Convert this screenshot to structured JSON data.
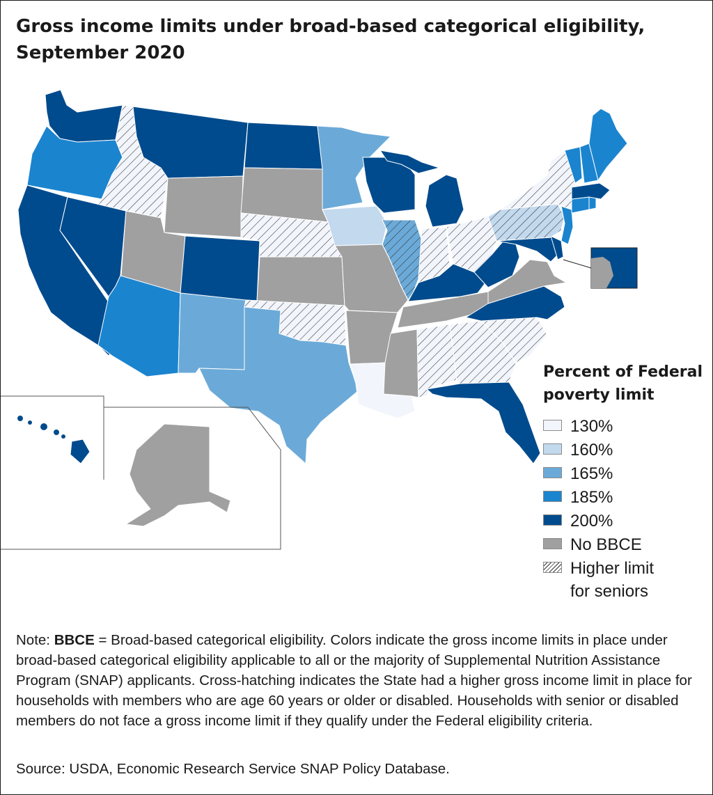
{
  "title": "Gross income limits under broad-based categorical eligibility, September 2020",
  "legend": {
    "heading": "Percent of Federal poverty limit",
    "items": [
      {
        "label": "130%",
        "key": "c130",
        "color": "#f2f5fb"
      },
      {
        "label": "160%",
        "key": "c160",
        "color": "#c3d9ee"
      },
      {
        "label": "165%",
        "key": "c165",
        "color": "#6baad8"
      },
      {
        "label": "185%",
        "key": "c185",
        "color": "#1b84cf"
      },
      {
        "label": "200%",
        "key": "c200",
        "color": "#004b8d"
      },
      {
        "label": "No BBCE",
        "key": "none",
        "color": "#a0a0a0"
      },
      {
        "label": "Higher limit for seniors",
        "key": "hatch",
        "color": "#ffffff"
      }
    ]
  },
  "note": {
    "prefix": "Note: ",
    "term": "BBCE",
    "text": " = Broad-based categorical eligibility. Colors indicate the gross income limits in place under broad-based categorical eligibility applicable to all or the majority of Supplemental Nutrition Assistance Program (SNAP) applicants. Cross-hatching indicates the State had a higher gross income limit in place for households with members who are age 60 years or older or disabled. Households with senior or disabled members do not face a gross income limit if they qualify under the Federal eligibility criteria."
  },
  "source": "Source: USDA, Economic Research Service SNAP Policy Database.",
  "states": [
    {
      "name": "Washington",
      "cat": "c200",
      "hatch": false
    },
    {
      "name": "Oregon",
      "cat": "c185",
      "hatch": false
    },
    {
      "name": "California",
      "cat": "c200",
      "hatch": false
    },
    {
      "name": "Idaho",
      "cat": "c130",
      "hatch": true
    },
    {
      "name": "Nevada",
      "cat": "c200",
      "hatch": false
    },
    {
      "name": "Montana",
      "cat": "c200",
      "hatch": false
    },
    {
      "name": "Wyoming",
      "cat": "none",
      "hatch": false
    },
    {
      "name": "Utah",
      "cat": "none",
      "hatch": false
    },
    {
      "name": "Arizona",
      "cat": "c185",
      "hatch": false
    },
    {
      "name": "Colorado",
      "cat": "c200",
      "hatch": false
    },
    {
      "name": "New Mexico",
      "cat": "c165",
      "hatch": false
    },
    {
      "name": "North Dakota",
      "cat": "c200",
      "hatch": false
    },
    {
      "name": "South Dakota",
      "cat": "none",
      "hatch": false
    },
    {
      "name": "Nebraska",
      "cat": "c130",
      "hatch": true
    },
    {
      "name": "Kansas",
      "cat": "none",
      "hatch": false
    },
    {
      "name": "Oklahoma",
      "cat": "c130",
      "hatch": true
    },
    {
      "name": "Texas",
      "cat": "c165",
      "hatch": false
    },
    {
      "name": "Minnesota",
      "cat": "c165",
      "hatch": false
    },
    {
      "name": "Iowa",
      "cat": "c160",
      "hatch": false
    },
    {
      "name": "Missouri",
      "cat": "none",
      "hatch": false
    },
    {
      "name": "Arkansas",
      "cat": "none",
      "hatch": false
    },
    {
      "name": "Louisiana",
      "cat": "c130",
      "hatch": false
    },
    {
      "name": "Wisconsin",
      "cat": "c200",
      "hatch": false
    },
    {
      "name": "Illinois",
      "cat": "c165",
      "hatch": true
    },
    {
      "name": "Michigan",
      "cat": "c200",
      "hatch": false
    },
    {
      "name": "Indiana",
      "cat": "c130",
      "hatch": true
    },
    {
      "name": "Ohio",
      "cat": "c130",
      "hatch": true
    },
    {
      "name": "Kentucky",
      "cat": "c200",
      "hatch": false
    },
    {
      "name": "Tennessee",
      "cat": "none",
      "hatch": false
    },
    {
      "name": "Mississippi",
      "cat": "none",
      "hatch": false
    },
    {
      "name": "Alabama",
      "cat": "c130",
      "hatch": true
    },
    {
      "name": "Georgia",
      "cat": "c130",
      "hatch": true
    },
    {
      "name": "Florida",
      "cat": "c200",
      "hatch": false
    },
    {
      "name": "South Carolina",
      "cat": "c130",
      "hatch": true
    },
    {
      "name": "North Carolina",
      "cat": "c200",
      "hatch": false
    },
    {
      "name": "Virginia",
      "cat": "none",
      "hatch": false
    },
    {
      "name": "West Virginia",
      "cat": "c200",
      "hatch": false
    },
    {
      "name": "Maryland",
      "cat": "c200",
      "hatch": false
    },
    {
      "name": "Delaware",
      "cat": "c200",
      "hatch": false
    },
    {
      "name": "District of Columbia",
      "cat": "c200",
      "hatch": false
    },
    {
      "name": "Pennsylvania",
      "cat": "c160",
      "hatch": true
    },
    {
      "name": "New Jersey",
      "cat": "c185",
      "hatch": false
    },
    {
      "name": "New York",
      "cat": "c130",
      "hatch": true
    },
    {
      "name": "Connecticut",
      "cat": "c185",
      "hatch": false
    },
    {
      "name": "Rhode Island",
      "cat": "c185",
      "hatch": false
    },
    {
      "name": "Massachusetts",
      "cat": "c200",
      "hatch": false
    },
    {
      "name": "Vermont",
      "cat": "c185",
      "hatch": false
    },
    {
      "name": "New Hampshire",
      "cat": "c185",
      "hatch": false
    },
    {
      "name": "Maine",
      "cat": "c185",
      "hatch": false
    },
    {
      "name": "Alaska",
      "cat": "none",
      "hatch": false
    },
    {
      "name": "Hawaii",
      "cat": "c200",
      "hatch": false
    }
  ]
}
